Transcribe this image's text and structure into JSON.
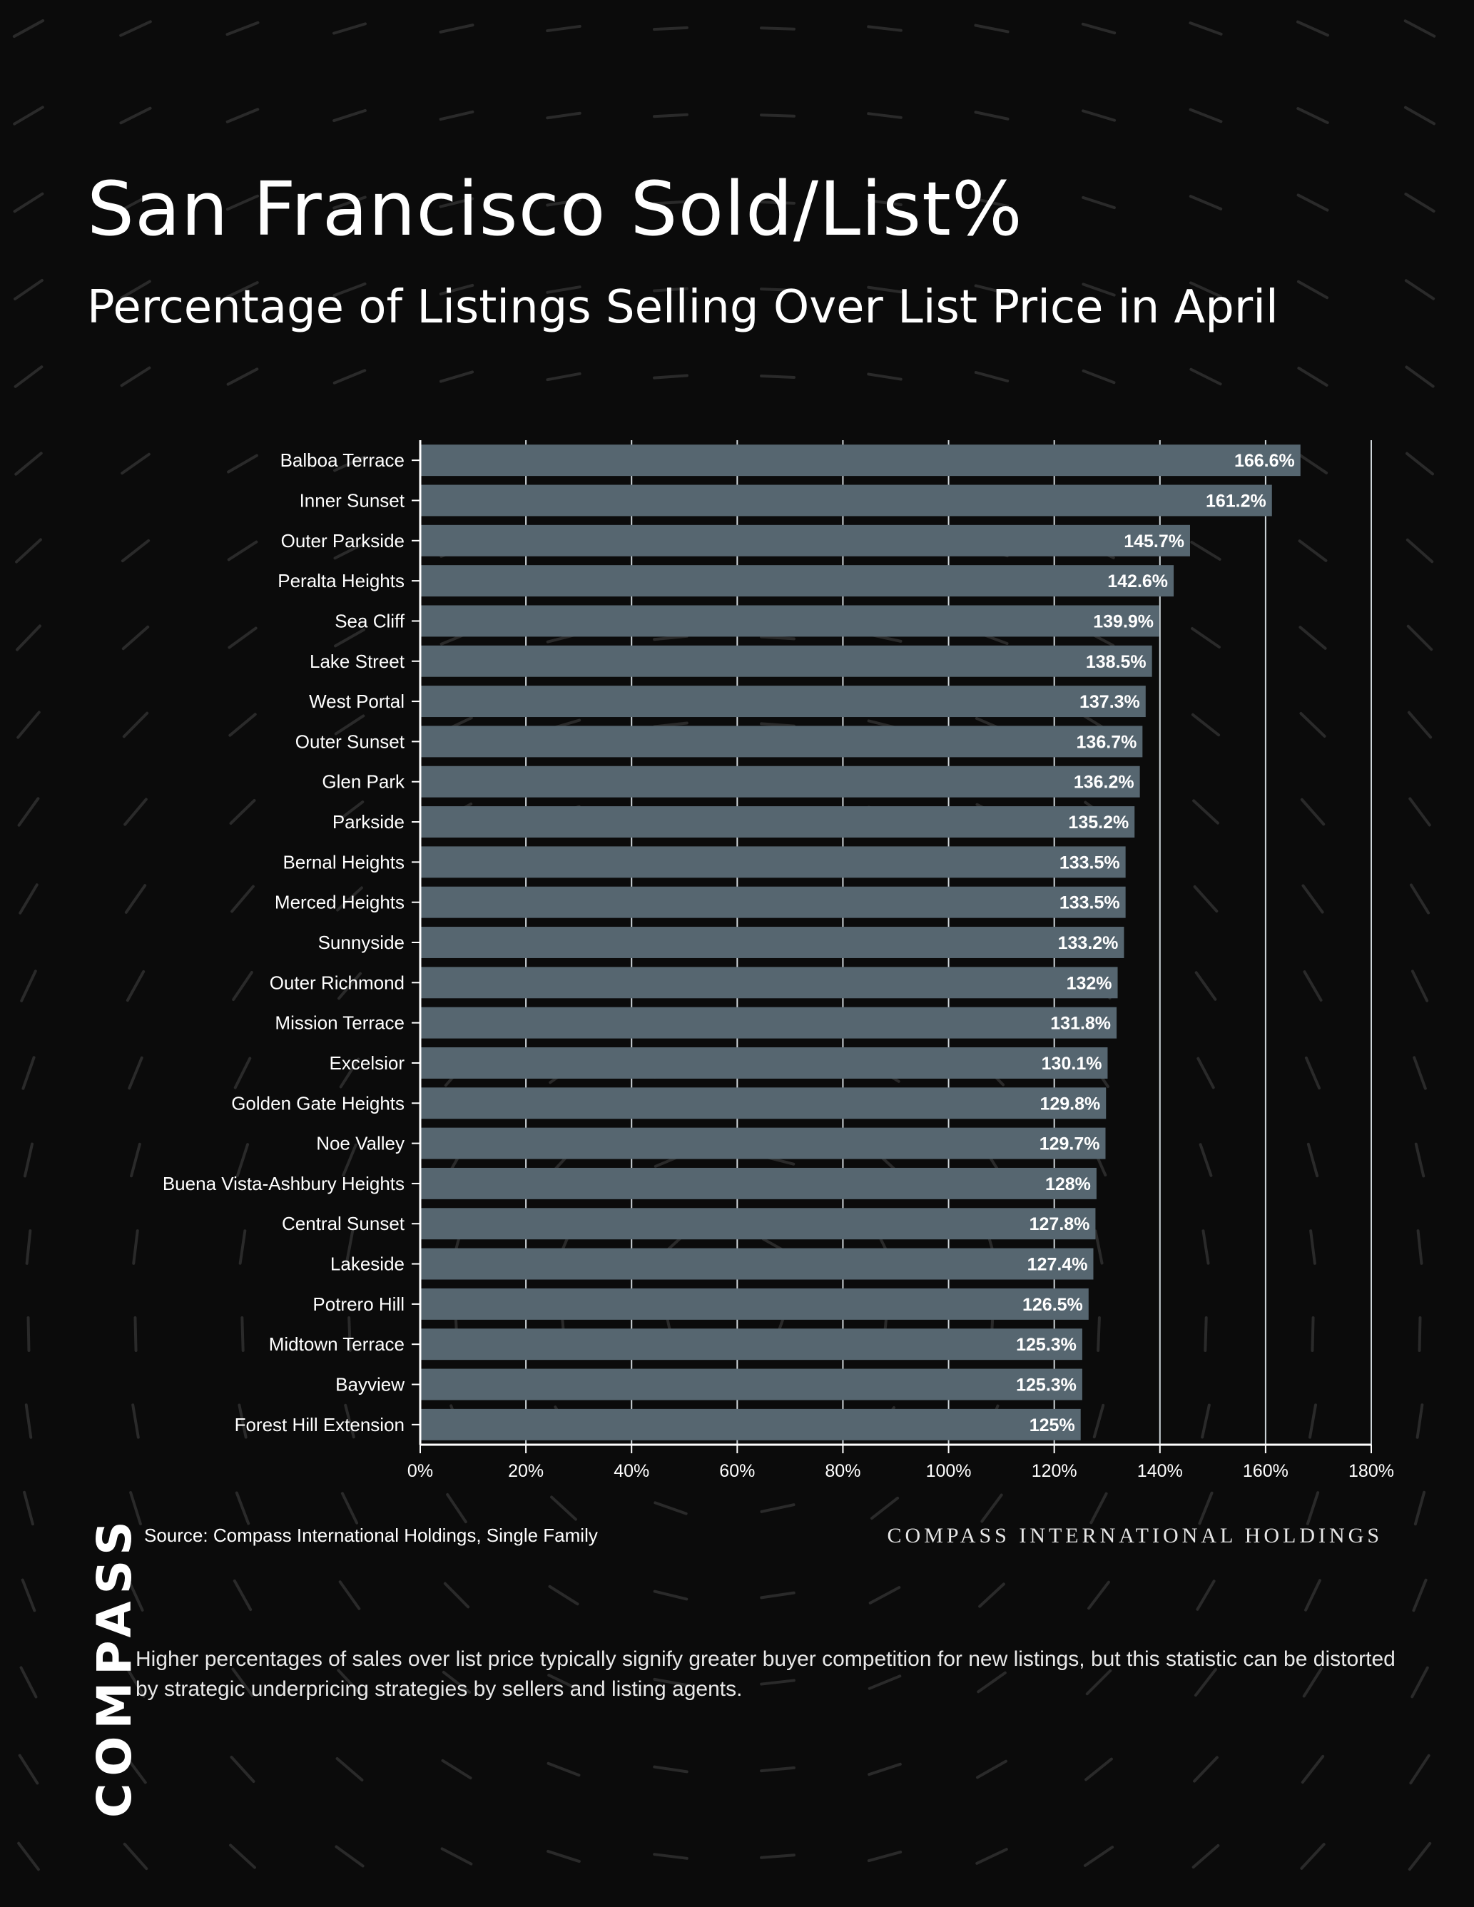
{
  "page": {
    "title": "San Francisco Sold/List%",
    "subtitle": "Percentage of Listings Selling Over List Price in April",
    "source": "Source: Compass International Holdings, Single Family",
    "brand_right": "COMPASS INTERNATIONAL HOLDINGS",
    "logo": "COMPASS",
    "footnote": "Higher percentages of sales over list price typically signify greater buyer competition for new listings, but this statistic can be distorted by strategic underpricing strategies by sellers and listing agents."
  },
  "chart_data": {
    "type": "bar",
    "orientation": "horizontal",
    "title": "San Francisco Sold/List%",
    "subtitle": "Percentage of Listings Selling Over List Price in April",
    "categories": [
      "Balboa Terrace",
      "Inner Sunset",
      "Outer Parkside",
      "Peralta Heights",
      "Sea Cliff",
      "Lake Street",
      "West Portal",
      "Outer Sunset",
      "Glen Park",
      "Parkside",
      "Bernal Heights",
      "Merced Heights",
      "Sunnyside",
      "Outer Richmond",
      "Mission Terrace",
      "Excelsior",
      "Golden Gate Heights",
      "Noe Valley",
      "Buena Vista-Ashbury Heights",
      "Central Sunset",
      "Lakeside",
      "Potrero Hill",
      "Midtown Terrace",
      "Bayview",
      "Forest Hill Extension"
    ],
    "values": [
      166.6,
      161.2,
      145.7,
      142.6,
      139.9,
      138.5,
      137.3,
      136.7,
      136.2,
      135.2,
      133.5,
      133.5,
      133.2,
      132,
      131.8,
      130.1,
      129.8,
      129.7,
      128,
      127.8,
      127.4,
      126.5,
      125.3,
      125.3,
      125
    ],
    "value_labels": [
      "166.6%",
      "161.2%",
      "145.7%",
      "142.6%",
      "139.9%",
      "138.5%",
      "137.3%",
      "136.7%",
      "136.2%",
      "135.2%",
      "133.5%",
      "133.5%",
      "133.2%",
      "132%",
      "131.8%",
      "130.1%",
      "129.8%",
      "129.7%",
      "128%",
      "127.8%",
      "127.4%",
      "126.5%",
      "125.3%",
      "125.3%",
      "125%"
    ],
    "xlim": [
      0,
      180
    ],
    "xticks": [
      0,
      20,
      40,
      60,
      80,
      100,
      120,
      140,
      160,
      180
    ],
    "xtick_labels": [
      "0%",
      "20%",
      "40%",
      "60%",
      "80%",
      "100%",
      "120%",
      "140%",
      "160%",
      "180%"
    ],
    "grid": true,
    "colors": {
      "bar": "#566670",
      "grid": "#cfd6da",
      "background": "#0b0b0b",
      "text": "#ffffff"
    }
  }
}
